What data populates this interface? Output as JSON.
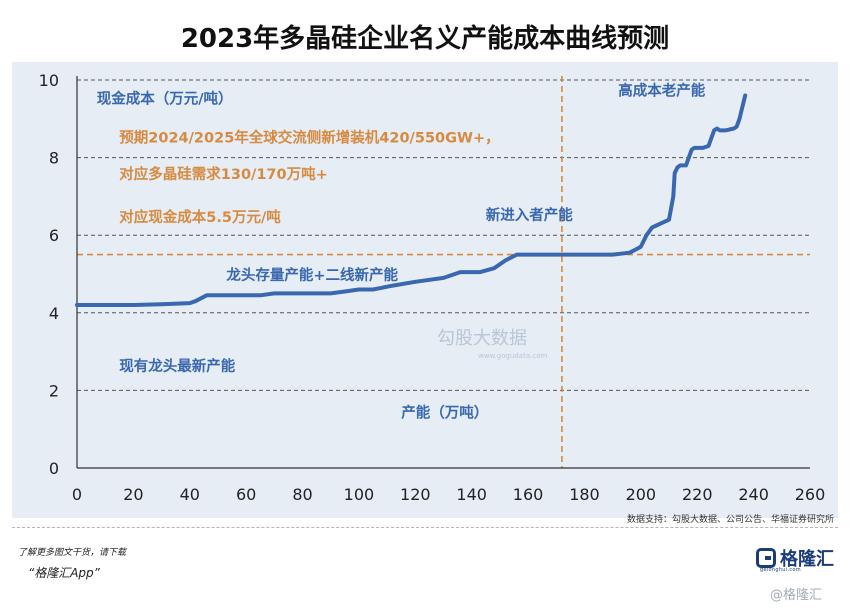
{
  "title": "2023年多晶硅企业名义产能成本曲线预测",
  "chart_data": {
    "type": "line",
    "xlabel": "产能（万吨）",
    "ylabel": "现金成本（万元/吨）",
    "xlim": [
      0,
      260
    ],
    "ylim": [
      0,
      10
    ],
    "x_ticks": [
      "0",
      "20",
      "40",
      "60",
      "80",
      "100",
      "120",
      "140",
      "160",
      "180",
      "200",
      "220",
      "240",
      "260"
    ],
    "y_ticks": [
      "0",
      "2",
      "4",
      "6",
      "8",
      "10"
    ],
    "grid": "horizontal dashed",
    "series": [
      {
        "color": "#3a68b0",
        "x": [
          0,
          20,
          30,
          40,
          42,
          46,
          50,
          65,
          70,
          90,
          95,
          100,
          105,
          112,
          120,
          130,
          136,
          143,
          148,
          152,
          156,
          165,
          170,
          180,
          190,
          196,
          200,
          202,
          204,
          205.5,
          207,
          210,
          211.5,
          212,
          213,
          214,
          216,
          217,
          218,
          219,
          220,
          222,
          224,
          226,
          227,
          228,
          230,
          233,
          234,
          235,
          236,
          237
        ],
        "y": [
          4.2,
          4.2,
          4.22,
          4.25,
          4.3,
          4.45,
          4.45,
          4.45,
          4.5,
          4.5,
          4.55,
          4.6,
          4.6,
          4.7,
          4.8,
          4.9,
          5.05,
          5.05,
          5.15,
          5.35,
          5.5,
          5.5,
          5.5,
          5.5,
          5.5,
          5.55,
          5.7,
          6.0,
          6.2,
          6.25,
          6.3,
          6.4,
          7.0,
          7.6,
          7.75,
          7.8,
          7.8,
          8.0,
          8.2,
          8.25,
          8.25,
          8.25,
          8.3,
          8.7,
          8.75,
          8.7,
          8.7,
          8.75,
          8.8,
          9.0,
          9.3,
          9.6
        ]
      }
    ],
    "reference_lines": [
      {
        "axis": "x",
        "value": 172,
        "color": "#d78a40"
      },
      {
        "axis": "y",
        "value": 5.5,
        "color": "#d78a40"
      }
    ],
    "annotations": [
      {
        "id": "ylabel",
        "text": "现金成本（万元/吨）",
        "x": 7,
        "y": 9.55,
        "color": "#3a68b0"
      },
      {
        "id": "forecast1",
        "text": "预期2024/2025年全球交流侧新增装机420/550GW+，",
        "x": 15,
        "y": 8.55,
        "color": "#d78a40"
      },
      {
        "id": "forecast2",
        "text": "对应多晶硅需求130/170万吨+",
        "x": 15,
        "y": 7.6,
        "color": "#d78a40"
      },
      {
        "id": "forecast3",
        "text": "对应现金成本5.5万元/吨",
        "x": 15,
        "y": 6.5,
        "color": "#d78a40"
      },
      {
        "id": "newentrants",
        "text": "新进入者产能",
        "x": 145,
        "y": 6.55,
        "color": "#3a68b0"
      },
      {
        "id": "highcost",
        "text": "高成本老产能",
        "x": 192,
        "y": 9.75,
        "color": "#3a68b0"
      },
      {
        "id": "leader_stock",
        "text": "龙头存量产能+二线新产能",
        "x": 53,
        "y": 5.0,
        "color": "#3a68b0"
      },
      {
        "id": "leader_new",
        "text": "现有龙头最新产能",
        "x": 15,
        "y": 2.65,
        "color": "#3a68b0"
      },
      {
        "id": "xlabel",
        "text": "产能（万吨）",
        "x": 115,
        "y": 1.45,
        "color": "#3a68b0"
      }
    ]
  },
  "source": "数据支持：勾股大数据、公司公告、华福证券研究所",
  "footer": {
    "promo": "了解更多图文干货，请下载",
    "app": "“格隆汇App”",
    "brand": "格隆汇",
    "brand_sub": "gelonghui.com",
    "watermark": "@格隆汇"
  },
  "watermark_center": "勾股大数据",
  "watermark_url": "www.gogudata.com"
}
